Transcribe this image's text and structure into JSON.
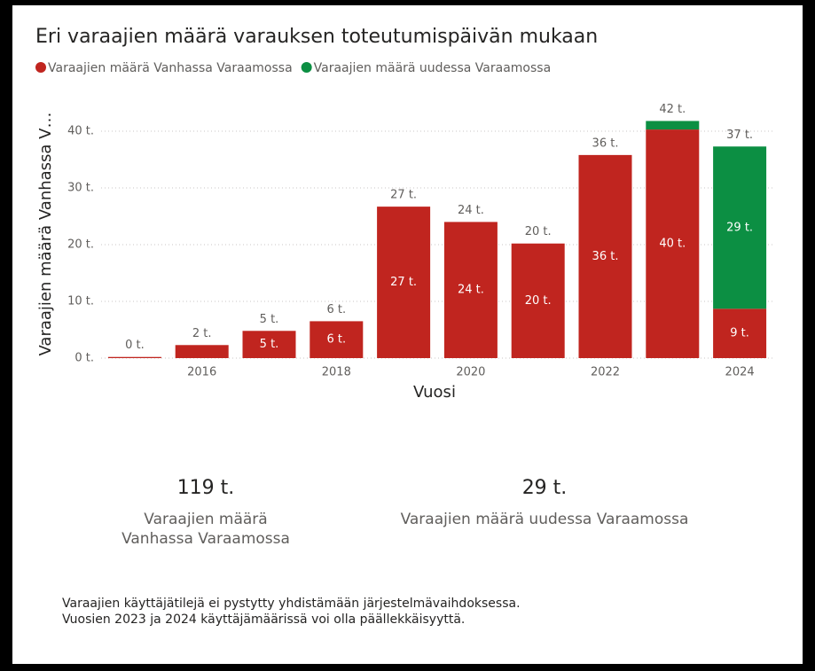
{
  "chart_data": {
    "type": "stacked-bar",
    "title": "Eri varaajien määrä varauksen toteutumispäivän mukaan",
    "x_label": "Vuosi",
    "y_label": "Varaajien määrä Vanhassa V…",
    "categories": [
      null,
      "2016",
      null,
      "2018",
      null,
      "2020",
      null,
      "2022",
      null,
      "2024"
    ],
    "series": [
      {
        "name": "Varaajien määrä Vanhassa Varaamossa",
        "color": "#c0251f",
        "values": [
          0.2,
          2.3,
          4.8,
          6.5,
          26.7,
          24,
          20.2,
          35.8,
          40.3,
          8.7
        ],
        "value_labels": [
          null,
          null,
          "5 t.",
          "6 t.",
          "27 t.",
          "24 t.",
          "20 t.",
          "36 t.",
          "40 t.",
          "9 t."
        ]
      },
      {
        "name": "Varaajien määrä uudessa Varaamossa",
        "color": "#0c8f43",
        "values": [
          null,
          null,
          null,
          null,
          null,
          null,
          null,
          null,
          1.5,
          28.6
        ],
        "value_labels": [
          null,
          null,
          null,
          null,
          null,
          null,
          null,
          null,
          null,
          "29 t."
        ]
      }
    ],
    "total_labels": [
      "0 t.",
      "2 t.",
      "5 t.",
      "6 t.",
      "27 t.",
      "24 t.",
      "20 t.",
      "36 t.",
      "42 t.",
      "37 t."
    ],
    "ylim": [
      0,
      45
    ],
    "yticks": [
      {
        "value": 0,
        "label": "0 t."
      },
      {
        "value": 10,
        "label": "10 t."
      },
      {
        "value": 20,
        "label": "20 t."
      },
      {
        "value": 30,
        "label": "30 t."
      },
      {
        "value": 40,
        "label": "40 t."
      }
    ],
    "grid": true,
    "legend": "top-left"
  },
  "cards": [
    {
      "value": "119 t.",
      "label": "Varaajien määrä Vanhassa Varaamossa"
    },
    {
      "value": "29 t.",
      "label": "Varaajien määrä uudessa Varaamossa"
    }
  ],
  "note": "Varaajien käyttäjätilejä ei pystytty yhdistämään järjestelmävaihdoksessa. Vuosien 2023 ja 2024 käyttäjämäärissä voi olla päällekkäisyyttä."
}
